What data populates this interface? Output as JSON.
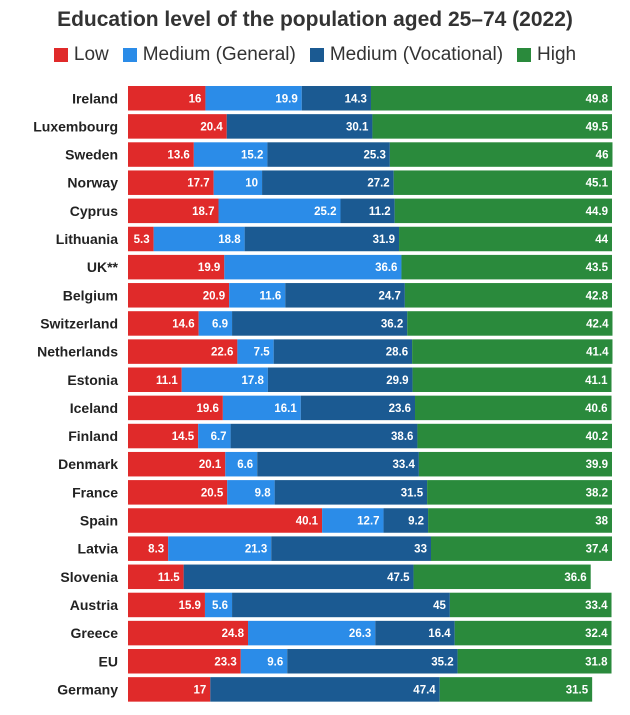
{
  "chart_data": {
    "type": "bar",
    "orientation": "horizontal",
    "stacked": true,
    "title": "Education level of the population aged 25–74 (2022)",
    "categories": [
      "Ireland",
      "Luxembourg",
      "Sweden",
      "Norway",
      "Cyprus",
      "Lithuania",
      "UK**",
      "Belgium",
      "Switzerland",
      "Netherlands",
      "Estonia",
      "Iceland",
      "Finland",
      "Denmark",
      "France",
      "Spain",
      "Latvia",
      "Slovenia",
      "Austria",
      "Greece",
      "EU",
      "Germany"
    ],
    "series": [
      {
        "name": "Low",
        "color": "#e02a2a",
        "values": [
          16,
          20.4,
          13.6,
          17.7,
          18.7,
          5.3,
          19.9,
          20.9,
          14.6,
          22.6,
          11.1,
          19.6,
          14.5,
          20.1,
          20.5,
          40.1,
          8.3,
          11.5,
          15.9,
          24.8,
          23.3,
          17
        ]
      },
      {
        "name": "Medium (General)",
        "color": "#2b8ce8",
        "values": [
          19.9,
          null,
          15.2,
          10,
          25.2,
          18.8,
          36.6,
          11.6,
          6.9,
          7.5,
          17.8,
          16.1,
          6.7,
          6.6,
          9.8,
          12.7,
          21.3,
          null,
          5.6,
          26.3,
          9.6,
          null
        ]
      },
      {
        "name": "Medium (Vocational)",
        "color": "#1b5a92",
        "values": [
          14.3,
          30.1,
          25.3,
          27.2,
          11.2,
          31.9,
          null,
          24.7,
          36.2,
          28.6,
          29.9,
          23.6,
          38.6,
          33.4,
          31.5,
          9.2,
          33,
          47.5,
          45,
          16.4,
          35.2,
          47.4
        ]
      },
      {
        "name": "High",
        "color": "#2a8a3c",
        "values": [
          49.8,
          49.5,
          46,
          45.1,
          44.9,
          44,
          43.5,
          42.8,
          42.4,
          41.4,
          41.1,
          40.6,
          40.2,
          39.9,
          38.2,
          38,
          37.4,
          36.6,
          33.4,
          32.4,
          31.8,
          31.5
        ]
      }
    ],
    "legend_position": "top",
    "xlim": [
      0,
      100
    ],
    "grid": false
  }
}
